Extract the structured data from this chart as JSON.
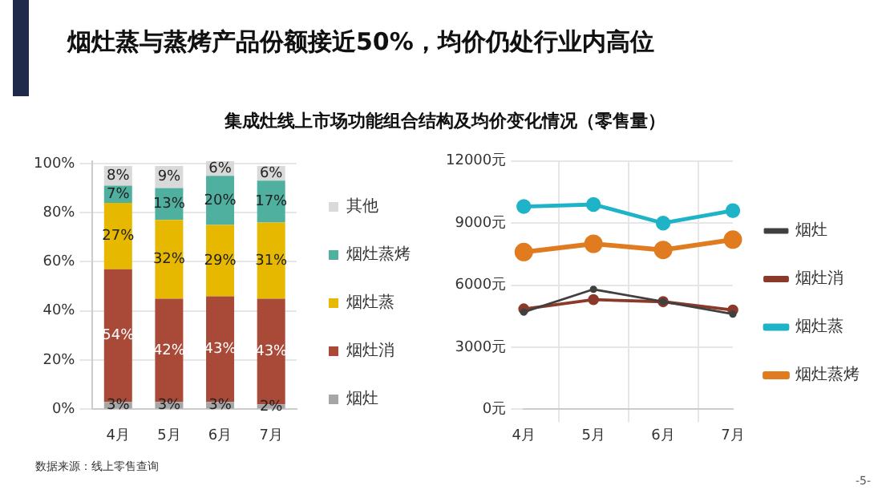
{
  "chart_data": [
    {
      "type": "bar",
      "title": "烟灶蒸与蒸烤产品份额接近50%，均价仍处行业内高位",
      "subtitle": "集成灶线上市场功能组合结构及均价变化情况（零售量）",
      "stacked": true,
      "categories": [
        "4月",
        "5月",
        "6月",
        "7月"
      ],
      "series": [
        {
          "name": "烟灶",
          "color": "#a6a6a6",
          "values": [
            3,
            3,
            3,
            2
          ],
          "value_labels": [
            "3%",
            "3%",
            "3%",
            "2%"
          ]
        },
        {
          "name": "烟灶消",
          "color": "#a84a37",
          "values": [
            54,
            42,
            43,
            43
          ],
          "value_labels": [
            "54%",
            "42%",
            "43%",
            "43%"
          ]
        },
        {
          "name": "烟灶蒸",
          "color": "#e6b800",
          "values": [
            27,
            32,
            29,
            31
          ],
          "value_labels": [
            "27%",
            "32%",
            "29%",
            "31%"
          ]
        },
        {
          "name": "烟灶蒸烤",
          "color": "#4fb0a0",
          "values": [
            7,
            13,
            20,
            17
          ],
          "value_labels": [
            "7%",
            "13%",
            "20%",
            "17%"
          ]
        },
        {
          "name": "其他",
          "color": "#d9d9d9",
          "values": [
            8,
            9,
            6,
            6
          ],
          "value_labels": [
            "8%",
            "9%",
            "6%",
            "6%"
          ]
        }
      ],
      "ylim": [
        0,
        101
      ],
      "yticks": [
        {
          "value": 0,
          "label": "0%"
        },
        {
          "value": 20,
          "label": "20%"
        },
        {
          "value": 40,
          "label": "40%"
        },
        {
          "value": 60,
          "label": "60%"
        },
        {
          "value": 80,
          "label": "80%"
        },
        {
          "value": 100,
          "label": "100%"
        }
      ],
      "grid": "y",
      "legend": "right",
      "annotations": [
        "数据来源：线上零售查询"
      ]
    },
    {
      "type": "line",
      "categories": [
        "4月",
        "5月",
        "6月",
        "7月"
      ],
      "series": [
        {
          "name": "烟灶",
          "color": "#404040",
          "values": [
            4700,
            5800,
            5200,
            4600
          ]
        },
        {
          "name": "烟灶消",
          "color": "#8b3a2a",
          "values": [
            4850,
            5300,
            5200,
            4800
          ]
        },
        {
          "name": "烟灶蒸",
          "color": "#1fb3c8",
          "values": [
            9800,
            9900,
            9000,
            9600
          ]
        },
        {
          "name": "烟灶蒸烤",
          "color": "#e07b20",
          "values": [
            7600,
            8000,
            7700,
            8200
          ]
        }
      ],
      "ylim": [
        0,
        12000
      ],
      "yticks": [
        {
          "value": 0,
          "label": "0元"
        },
        {
          "value": 3000,
          "label": "3000元"
        },
        {
          "value": 6000,
          "label": "6000元"
        },
        {
          "value": 9000,
          "label": "9000元"
        },
        {
          "value": 12000,
          "label": "12000元"
        }
      ],
      "grid": true,
      "legend": "right",
      "marker": "circle",
      "line_style": "solid",
      "annotations": [
        "-5-"
      ]
    }
  ]
}
